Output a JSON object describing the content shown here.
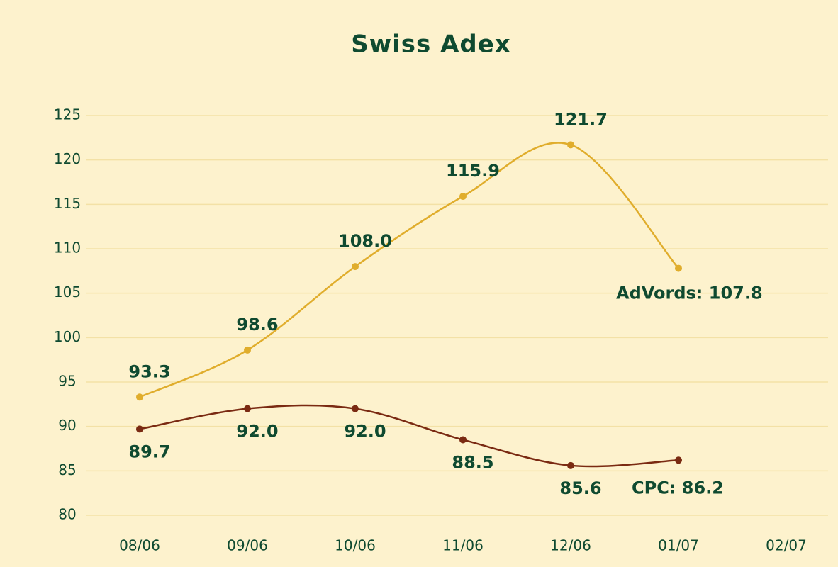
{
  "chart_data": {
    "type": "line",
    "title": "Swiss Adex",
    "categories": [
      "08/06",
      "09/06",
      "10/06",
      "11/06",
      "12/06",
      "01/07",
      "02/07"
    ],
    "series": [
      {
        "color": "#e0ad2c",
        "values": [
          93.3,
          98.6,
          108.0,
          115.9,
          121.7,
          107.8,
          null
        ],
        "value_labels": [
          "93.3",
          "98.6",
          "108.0",
          "115.9",
          "121.7",
          "AdVords: 107.8",
          null
        ]
      },
      {
        "color": "#7a2a12",
        "values": [
          89.7,
          92.0,
          92.0,
          88.5,
          85.6,
          86.2,
          null
        ],
        "value_labels": [
          "89.7",
          "92.0",
          "92.0",
          "88.5",
          "85.6",
          "CPC: 86.2",
          null
        ]
      }
    ],
    "ylim": [
      80,
      125
    ],
    "yticks": [
      80,
      85,
      90,
      95,
      100,
      105,
      110,
      115,
      120,
      125
    ],
    "grid": true
  }
}
